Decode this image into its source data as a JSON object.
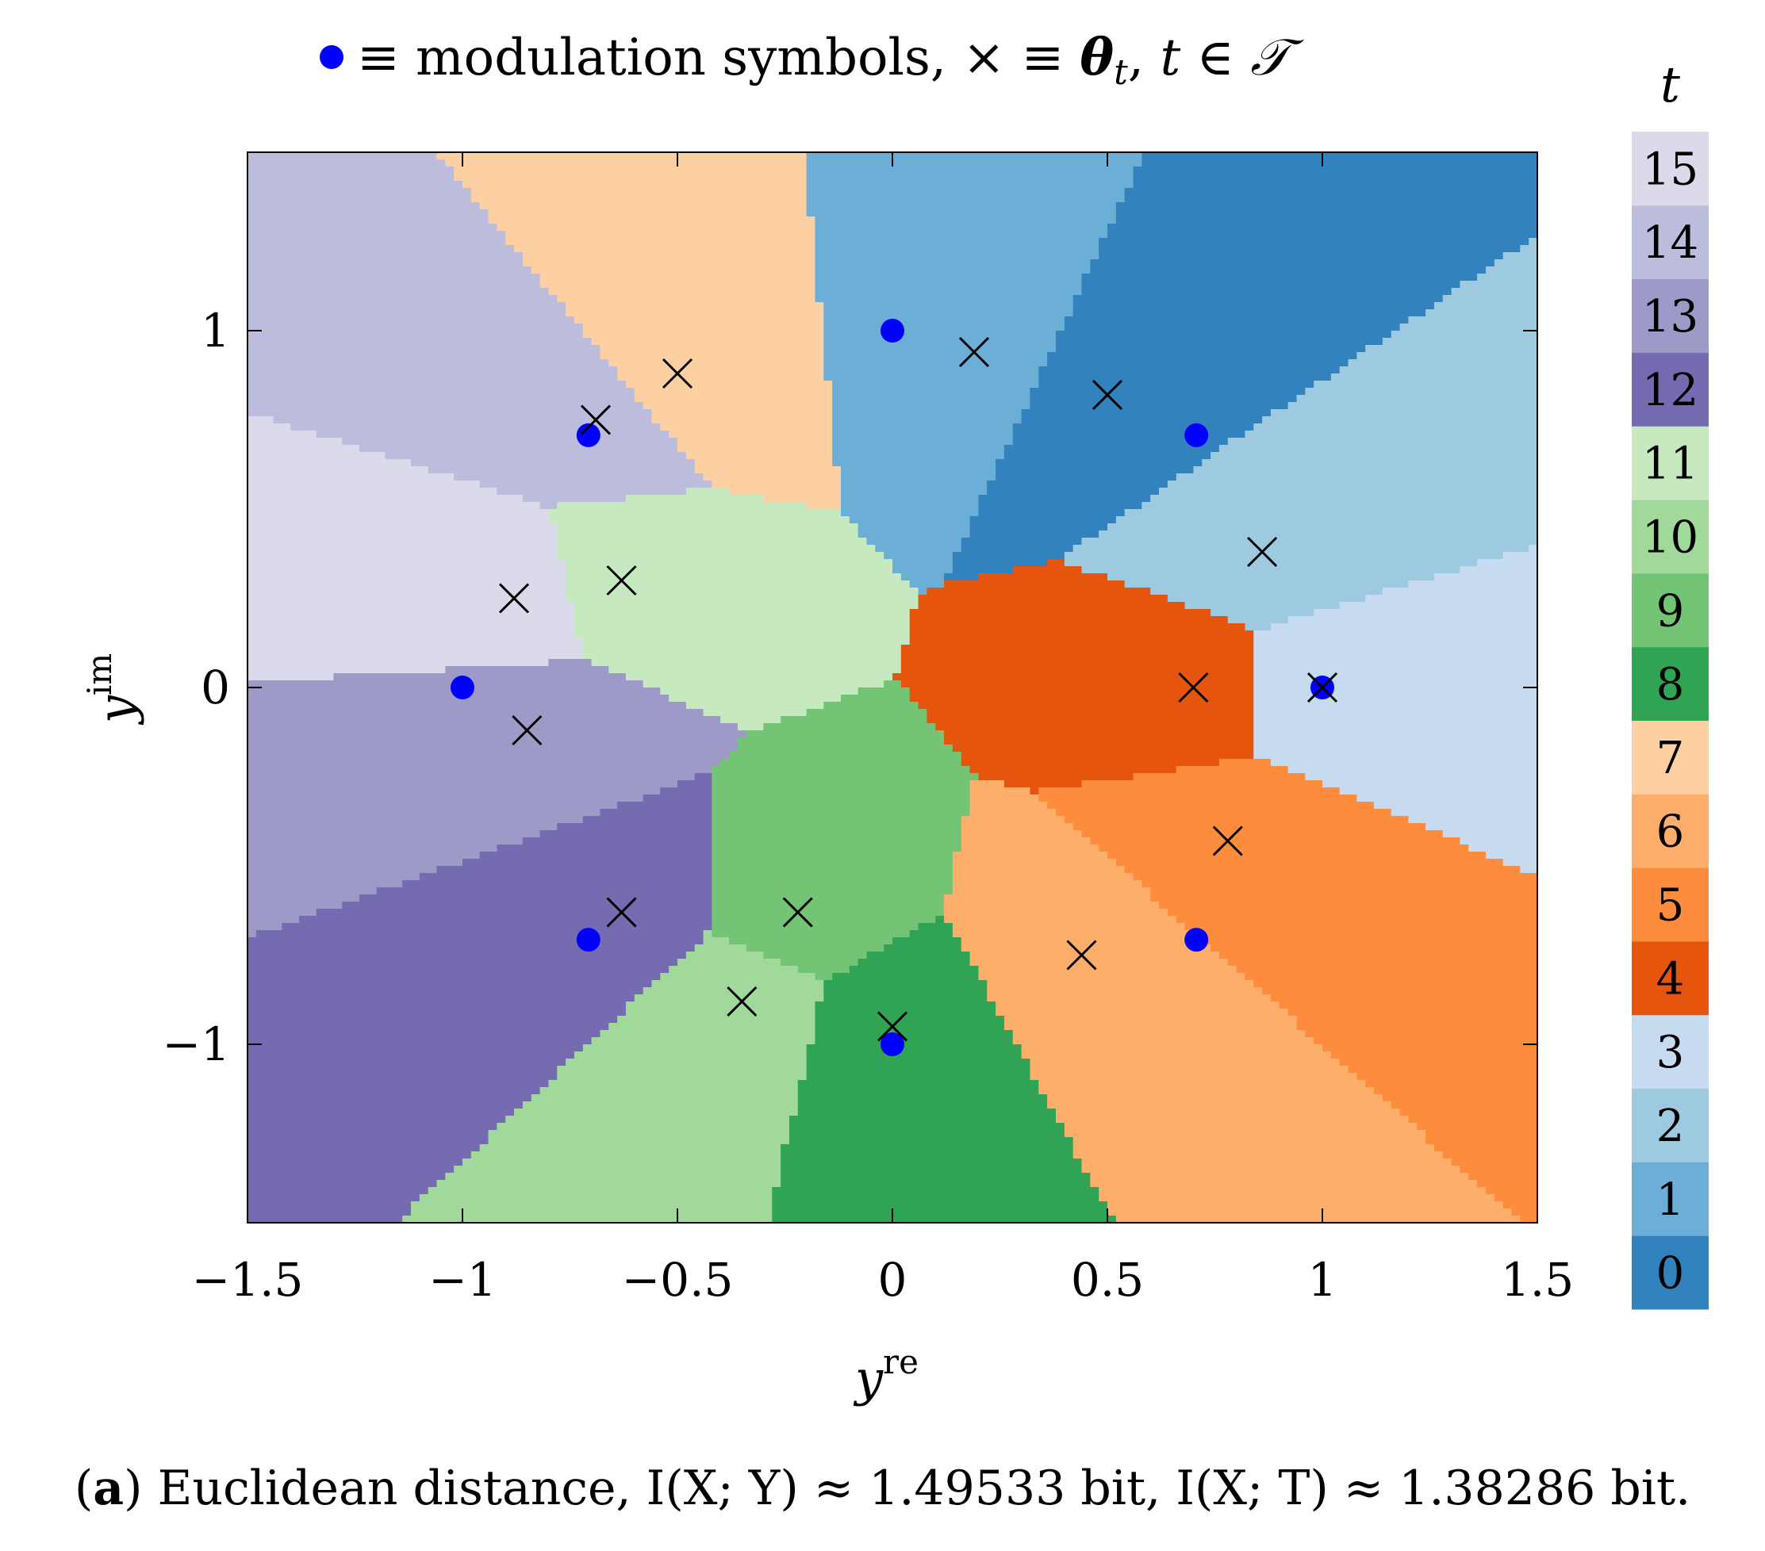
{
  "chart_data": {
    "type": "scatter",
    "title": {
      "parts": [
        "≡ modulation symbols, ",
        "×",
        " ≡ ",
        "θ",
        "t",
        ", ",
        "t",
        " ∈ ",
        "𝒯"
      ]
    },
    "xlabel": "y",
    "xlabel_sup": "re",
    "ylabel": "y",
    "ylabel_sup": "im",
    "xlim": [
      -1.5,
      1.5
    ],
    "ylim": [
      -1.5,
      1.5
    ],
    "xticks": [
      -1.5,
      -1,
      -0.5,
      0,
      0.5,
      1,
      1.5
    ],
    "xtick_labels": [
      "−1.5",
      "−1",
      "−0.5",
      "0",
      "0.5",
      "1",
      "1.5"
    ],
    "yticks": [
      -1,
      0,
      1
    ],
    "ytick_labels": [
      "−1",
      "0",
      "1"
    ],
    "region_metric": "nearest centroid (Euclidean distance)",
    "series": [
      {
        "name": "modulation symbols",
        "marker": "circle",
        "color": "#0000ff",
        "points": [
          [
            1,
            0
          ],
          [
            0.707,
            0.707
          ],
          [
            0,
            1
          ],
          [
            -0.707,
            0.707
          ],
          [
            -1,
            0
          ],
          [
            -0.707,
            -0.707
          ],
          [
            0,
            -1
          ],
          [
            0.707,
            -0.707
          ]
        ]
      },
      {
        "name": "theta_t",
        "marker": "cross",
        "color": "#000000",
        "points": [
          {
            "t": 0,
            "x": 0.5,
            "y": 0.82
          },
          {
            "t": 1,
            "x": 0.19,
            "y": 0.94
          },
          {
            "t": 2,
            "x": 0.86,
            "y": 0.38
          },
          {
            "t": 3,
            "x": 1.0,
            "y": 0.0
          },
          {
            "t": 4,
            "x": 0.7,
            "y": 0.0
          },
          {
            "t": 5,
            "x": 0.78,
            "y": -0.43
          },
          {
            "t": 6,
            "x": 0.44,
            "y": -0.75
          },
          {
            "t": 7,
            "x": -0.5,
            "y": 0.88
          },
          {
            "t": 8,
            "x": 0.0,
            "y": -0.95
          },
          {
            "t": 9,
            "x": -0.22,
            "y": -0.63
          },
          {
            "t": 10,
            "x": -0.35,
            "y": -0.88
          },
          {
            "t": 11,
            "x": -0.63,
            "y": 0.3
          },
          {
            "t": 12,
            "x": -0.63,
            "y": -0.63
          },
          {
            "t": 13,
            "x": -0.85,
            "y": -0.12
          },
          {
            "t": 14,
            "x": -0.69,
            "y": 0.75
          },
          {
            "t": 15,
            "x": -0.88,
            "y": 0.25
          }
        ]
      }
    ],
    "colorbar": {
      "label": "t",
      "colors": [
        "#3182bd",
        "#6baed6",
        "#9ecae1",
        "#c6dbef",
        "#e6550d",
        "#fd8d3c",
        "#fdae6b",
        "#fdd0a2",
        "#31a354",
        "#74c476",
        "#a1d99b",
        "#c7e9c0",
        "#756bb1",
        "#9e9ac8",
        "#bcbddc",
        "#dadaeb"
      ],
      "labels": [
        "0",
        "1",
        "2",
        "3",
        "4",
        "5",
        "6",
        "7",
        "8",
        "9",
        "10",
        "11",
        "12",
        "13",
        "14",
        "15"
      ]
    }
  },
  "caption": {
    "label": "a",
    "text": "Euclidean distance, I(X; Y) ≈ 1.49533 bit, I(X; T) ≈ 1.38286 bit."
  }
}
